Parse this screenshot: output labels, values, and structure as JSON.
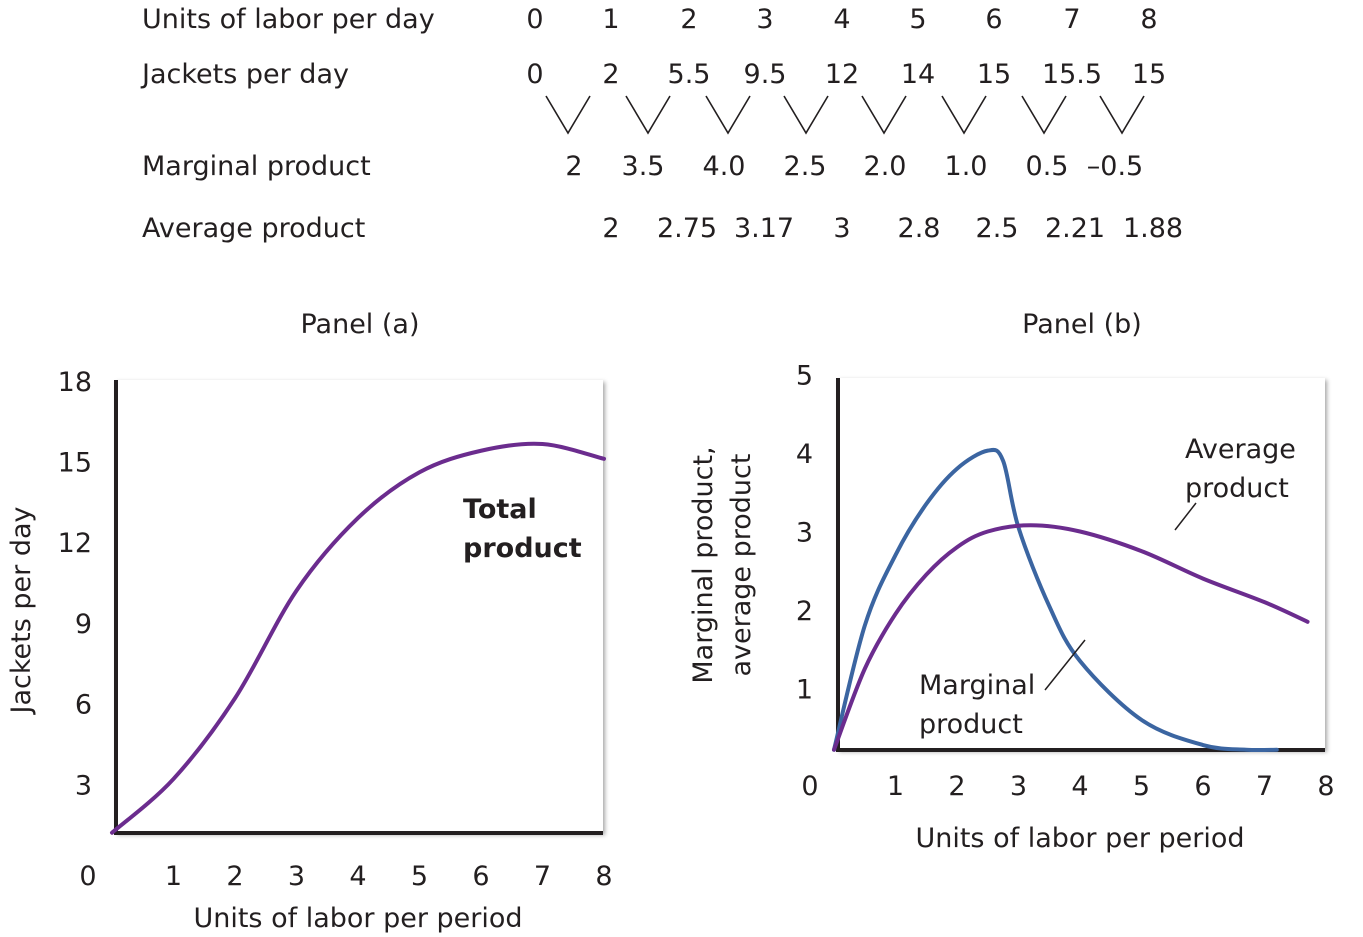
{
  "table": {
    "rows": [
      {
        "label": "Units of labor per day",
        "values": [
          "0",
          "1",
          "2",
          "3",
          "4",
          "5",
          "6",
          "7",
          "8"
        ]
      },
      {
        "label": "Jackets per day",
        "values": [
          "0",
          "2",
          "5.5",
          "9.5",
          "12",
          "14",
          "15",
          "15.5",
          "15"
        ]
      },
      {
        "label": "Marginal product",
        "values": [
          "2",
          "3.5",
          "4.0",
          "2.5",
          "2.0",
          "1.0",
          "0.5",
          "–0.5"
        ]
      },
      {
        "label": "Average product",
        "values": [
          "2",
          "2.75",
          "3.17",
          "3",
          "2.8",
          "2.5",
          "2.21",
          "1.88"
        ]
      }
    ]
  },
  "colors": {
    "total": "#6b2c8e",
    "average": "#6b2c8e",
    "marginal": "#3b65a1",
    "axis": "#231f20"
  },
  "chart_data": [
    {
      "type": "line",
      "title": "Panel (a)",
      "xlabel": "Units of labor per period",
      "ylabel": "Jackets per day",
      "xticks": [
        "0",
        "1",
        "2",
        "3",
        "4",
        "5",
        "6",
        "7",
        "8"
      ],
      "yticks": [
        "3",
        "6",
        "9",
        "12",
        "15",
        "18"
      ],
      "xlim": [
        0,
        8
      ],
      "ylim": [
        0,
        18
      ],
      "series": [
        {
          "name": "Total product",
          "label_line1": "Total",
          "label_line2": "product",
          "x": [
            0,
            1,
            2,
            3,
            4,
            5,
            6,
            7,
            8
          ],
          "y": [
            1.2,
            3.2,
            6.2,
            10.2,
            12.9,
            14.6,
            15.4,
            15.65,
            15.1
          ]
        }
      ]
    },
    {
      "type": "line",
      "title": "Panel (b)",
      "xlabel": "Units of labor per period",
      "ylabel_line1": "Marginal product,",
      "ylabel_line2": "average product",
      "xticks": [
        "0",
        "1",
        "2",
        "3",
        "4",
        "5",
        "6",
        "7",
        "8"
      ],
      "yticks": [
        "1",
        "2",
        "3",
        "4",
        "5"
      ],
      "xlim": [
        0,
        8
      ],
      "ylim": [
        0,
        5
      ],
      "series": [
        {
          "name": "Marginal product",
          "label_line1": "Marginal",
          "label_line2": "product",
          "x": [
            0,
            0.5,
            1,
            1.5,
            2,
            2.5,
            2.75,
            3,
            3.5,
            4,
            5,
            6,
            6.7,
            7.2
          ],
          "y": [
            0.22,
            1.8,
            2.7,
            3.35,
            3.8,
            4.03,
            3.9,
            3.05,
            2.05,
            1.35,
            0.6,
            0.28,
            0.22,
            0.22
          ]
        },
        {
          "name": "Average product",
          "label_line1": "Average",
          "label_line2": "product",
          "x": [
            0,
            0.5,
            1,
            1.5,
            2,
            2.5,
            3.2,
            4,
            5,
            6,
            7,
            7.7
          ],
          "y": [
            0.22,
            1.25,
            1.95,
            2.45,
            2.8,
            3.0,
            3.08,
            3.0,
            2.75,
            2.4,
            2.1,
            1.85
          ]
        }
      ]
    }
  ]
}
